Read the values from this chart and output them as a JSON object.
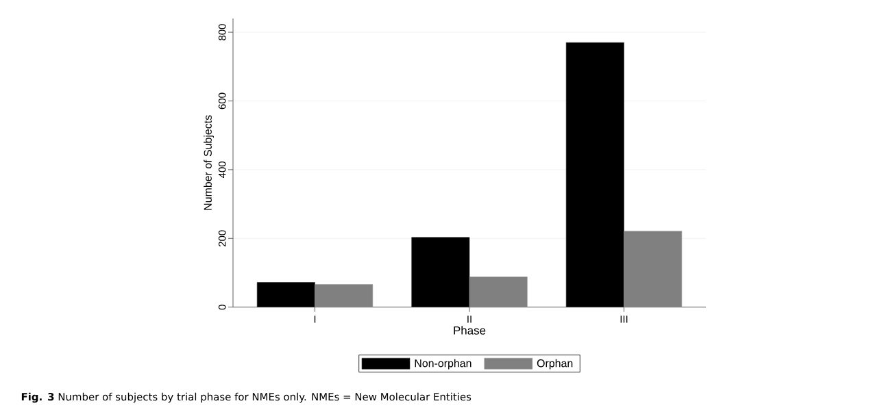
{
  "chart_data": {
    "type": "bar",
    "xlabel": "Phase",
    "ylabel": "Number of Subjects",
    "categories": [
      "I",
      "II",
      "III"
    ],
    "series": [
      {
        "name": "Non-orphan",
        "color": "#000000",
        "values": [
          72,
          203,
          770
        ]
      },
      {
        "name": "Orphan",
        "color": "#808080",
        "values": [
          66,
          88,
          221
        ]
      }
    ],
    "ylim": [
      0,
      840
    ],
    "yticks": [
      0,
      200,
      400,
      600,
      800
    ],
    "grid": "y",
    "legend": "bottom",
    "annotations": [
      "**Fig. 3** Number of subjects by trial phase for NMEs only. NMEs = New Molecular Entities"
    ]
  }
}
